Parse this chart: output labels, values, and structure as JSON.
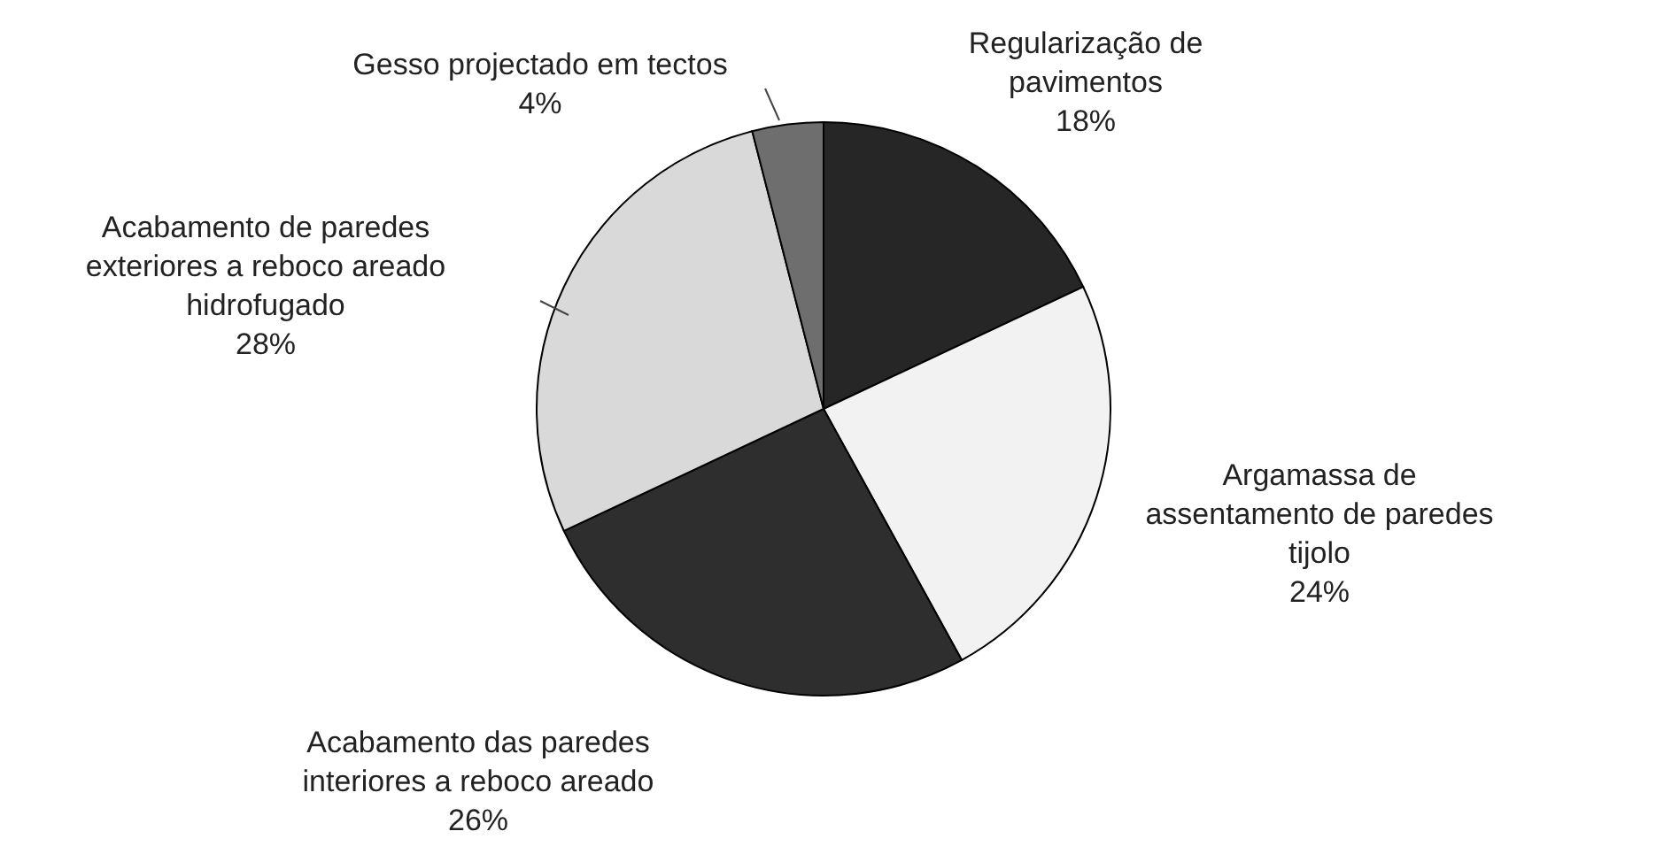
{
  "chart_data": {
    "type": "pie",
    "categories": [
      "Regularização de pavimentos",
      "Argamassa de assentamento de paredes tijolo",
      "Acabamento das paredes interiores a reboco areado",
      "Acabamento de paredes exteriores a reboco areado hidrofugado",
      "Gesso projectado em tectos"
    ],
    "values": [
      18,
      24,
      26,
      28,
      4
    ],
    "value_labels": [
      "18%",
      "24%",
      "26%",
      "28%",
      "4%"
    ],
    "colors": [
      "#262626",
      "#f2f2f2",
      "#2e2e2e",
      "#d9d9d9",
      "#6e6e6e"
    ]
  }
}
